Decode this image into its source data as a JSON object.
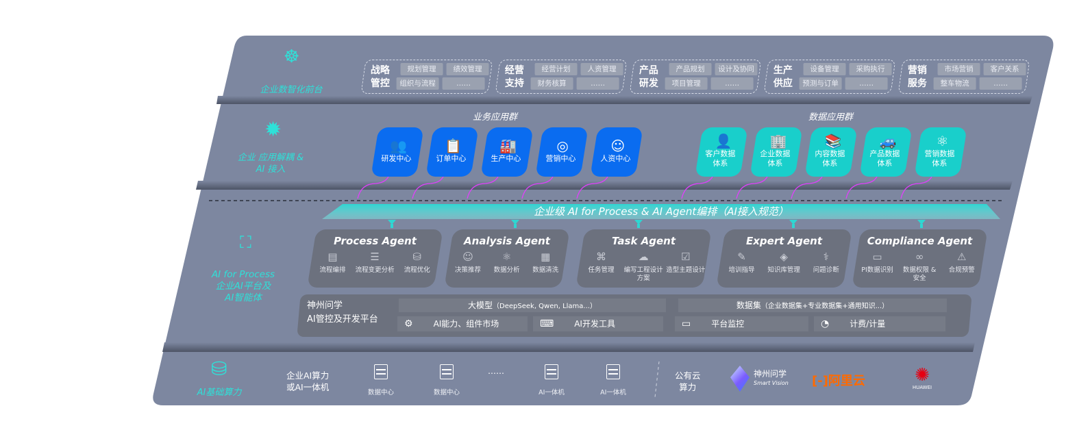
{
  "layers": {
    "front": {
      "label": "企业数智化前台",
      "icon": "brain-icon"
    },
    "apps": {
      "label": "企业 应用解耦 & AI 接入",
      "icon": "molecule-hub-icon"
    },
    "process": {
      "label_en": "AI for Process",
      "label_cn1": "企业AI平台及",
      "label_cn2": "AI智能体",
      "icon": "user-scan-icon"
    },
    "compute": {
      "label": "AI基础算力",
      "icon": "database-icon"
    }
  },
  "front_groups": [
    {
      "title1": "战略",
      "title2": "管控",
      "chips": [
        "规划管理",
        "绩效管理",
        "组织与流程",
        "……"
      ]
    },
    {
      "title1": "经营",
      "title2": "支持",
      "chips": [
        "经营计划",
        "人资管理",
        "财务核算",
        "……"
      ]
    },
    {
      "title1": "产品",
      "title2": "研发",
      "chips": [
        "产品规划",
        "设计及协同",
        "项目管理",
        "……"
      ]
    },
    {
      "title1": "生产",
      "title2": "供应",
      "chips": [
        "设备管理",
        "采购执行",
        "预测与订单",
        "……"
      ]
    },
    {
      "title1": "营销",
      "title2": "服务",
      "chips": [
        "市场营销",
        "客户关系",
        "整车物流",
        "……"
      ]
    }
  ],
  "business_apps": {
    "title": "业务应用群",
    "color": "#0a6cf0",
    "items": [
      {
        "label": "研发中心",
        "icon": "team-icon"
      },
      {
        "label": "订单中心",
        "icon": "clipboard-icon"
      },
      {
        "label": "生产中心",
        "icon": "factory-icon"
      },
      {
        "label": "营销中心",
        "icon": "target-icon"
      },
      {
        "label": "人资中心",
        "icon": "person-hand-icon"
      }
    ]
  },
  "data_apps": {
    "title": "数据应用群",
    "color": "#19cfcb",
    "items": [
      {
        "label": "客户数据\n体系",
        "icon": "user-icon"
      },
      {
        "label": "企业数据\n体系",
        "icon": "building-icon"
      },
      {
        "label": "内容数据\n体系",
        "icon": "books-icon"
      },
      {
        "label": "产品数据\n体系",
        "icon": "car-icon"
      },
      {
        "label": "营销数据\n体系",
        "icon": "atom-icon"
      }
    ]
  },
  "orchestration_banner": "企业级 AI for Process & AI Agent编排（AI接入规范）",
  "agents": [
    {
      "name": "Process Agent",
      "items": [
        {
          "label": "流程编排",
          "icon": "flow-chart-icon"
        },
        {
          "label": "流程变更分析",
          "icon": "list-icon"
        },
        {
          "label": "流程优化",
          "icon": "stack-icon"
        }
      ]
    },
    {
      "name": "Analysis Agent",
      "items": [
        {
          "label": "决策推荐",
          "icon": "head-icon"
        },
        {
          "label": "数据分析",
          "icon": "atom-icon"
        },
        {
          "label": "数据清洗",
          "icon": "document-icon"
        }
      ]
    },
    {
      "name": "Task Agent",
      "items": [
        {
          "label": "任务管理",
          "icon": "network-icon"
        },
        {
          "label": "编写工程设计方案",
          "icon": "cloud-icon"
        },
        {
          "label": "造型主题设计",
          "icon": "checklist-icon"
        }
      ]
    },
    {
      "name": "Expert Agent",
      "items": [
        {
          "label": "培训指导",
          "icon": "pencil-ruler-icon"
        },
        {
          "label": "知识库管理",
          "icon": "layers-icon"
        },
        {
          "label": "问题诊断",
          "icon": "diagnosis-icon"
        }
      ]
    },
    {
      "name": "Compliance Agent",
      "items": [
        {
          "label": "PI数据识别",
          "icon": "id-card-icon"
        },
        {
          "label": "数据权限 &\n安全",
          "icon": "link-icon"
        },
        {
          "label": "合规预警",
          "icon": "alert-box-icon"
        }
      ]
    }
  ],
  "platform": {
    "name1": "神州问学",
    "name2": "AI管控及开发平台",
    "models": "大模型",
    "models_note": "（DeepSeek, Qwen, Llama...）",
    "datasets": "数据集",
    "datasets_note": "（企业数据集+专业数据集+通用知识...）",
    "tools": [
      {
        "label": "AI能力、组件市场",
        "icon": "market-gear-icon"
      },
      {
        "label": "AI开发工具",
        "icon": "dev-tool-icon"
      },
      {
        "label": "平台监控",
        "icon": "monitor-icon"
      },
      {
        "label": "计费/计量",
        "icon": "gauge-icon"
      }
    ]
  },
  "compute": {
    "private_label1": "企业AI算力",
    "private_label2": "或AI一体机",
    "servers": [
      {
        "label": "数据中心"
      },
      {
        "label": "数据中心"
      },
      {
        "label": "AI一体机"
      },
      {
        "label": "AI一体机"
      }
    ],
    "ellipsis": "……",
    "public_label1": "公有云",
    "public_label2": "算力",
    "providers": [
      {
        "name": "神州问学",
        "sub": "Smart Vision"
      },
      {
        "name": "阿里云"
      },
      {
        "name": "HUAWEI"
      }
    ]
  },
  "colors": {
    "panel": "#7d87a0",
    "accent": "#2fe0d8",
    "link": "#e040fb",
    "aliyun": "#ff6a00",
    "huawei": "#e60012"
  }
}
